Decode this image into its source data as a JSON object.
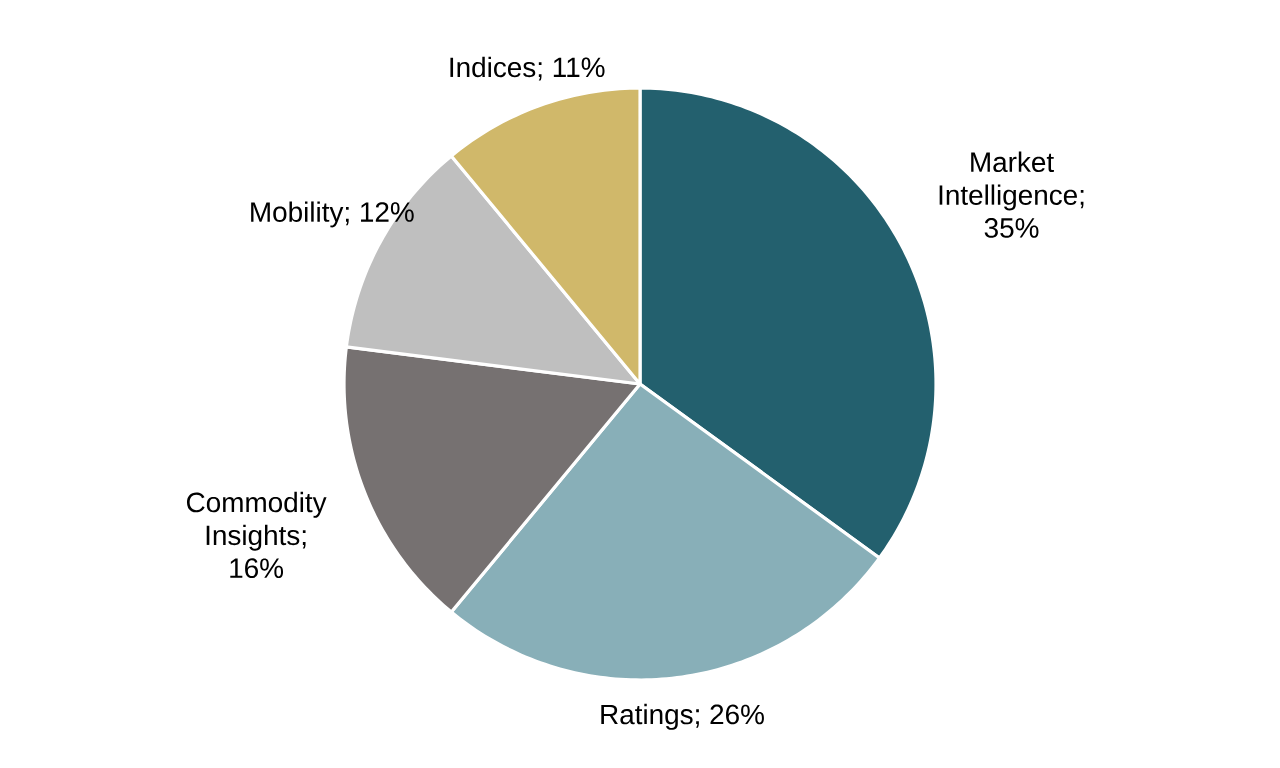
{
  "chart_data": {
    "type": "pie",
    "categories": [
      "Market Intelligence; 35%",
      "Ratings; 26%",
      "Commodity Insights; 16%",
      "Mobility;  12%",
      "Indices; 11%"
    ],
    "values": [
      35,
      26,
      16,
      12,
      11
    ],
    "colors": [
      "#23606e",
      "#88afb8",
      "#767171",
      "#bfbfbf",
      "#d0b86a"
    ]
  }
}
